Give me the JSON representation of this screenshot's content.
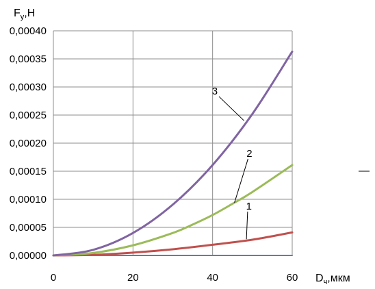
{
  "chart_data": {
    "type": "line",
    "ylabel_main": "F",
    "ylabel_sub": "y",
    "ylabel_unit": ",Н",
    "xlabel_main": "D",
    "xlabel_sub": "ч",
    "xlabel_unit": ",мкм",
    "xlim": [
      0,
      60
    ],
    "ylim": [
      0,
      0.0004
    ],
    "x_ticks": [
      "0",
      "20",
      "40",
      "60"
    ],
    "y_ticks": [
      "0,00000",
      "0,00005",
      "0,00010",
      "0,00015",
      "0,00020",
      "0,00025",
      "0,00030",
      "0,00035",
      "0,00040"
    ],
    "grid": true,
    "series": [
      {
        "name": "",
        "color": "#4f81bd",
        "x": [
          0,
          60
        ],
        "y": [
          0,
          0
        ]
      },
      {
        "name": "1",
        "color": "#c0504d",
        "x": [
          0,
          10,
          20,
          30,
          40,
          50,
          60
        ],
        "y": [
          0,
          1e-06,
          5e-06,
          1.1e-05,
          1.9e-05,
          2.8e-05,
          4.1e-05
        ]
      },
      {
        "name": "2",
        "color": "#9bbb59",
        "x": [
          0,
          10,
          20,
          30,
          35,
          40,
          45,
          50,
          60
        ],
        "y": [
          0,
          4.5e-06,
          1.8e-05,
          4e-05,
          5.5e-05,
          7.2e-05,
          9.2e-05,
          0.000113,
          0.000161
        ]
      },
      {
        "name": "3",
        "color": "#8064a2",
        "x": [
          0,
          10,
          20,
          30,
          40,
          50,
          60
        ],
        "y": [
          0,
          1e-05,
          4e-05,
          9.05e-05,
          0.000161,
          0.000252,
          0.000363
        ]
      }
    ],
    "annotations": [
      {
        "text": "1",
        "label_x": 48.8,
        "label_y": 7.8e-05,
        "point_x": 48.5,
        "point_y": 2.9e-05
      },
      {
        "text": "2",
        "label_x": 48.9,
        "label_y": 0.000172,
        "point_x": 45.5,
        "point_y": 9.4e-05
      },
      {
        "text": "3",
        "label_x": 41.6,
        "label_y": 0.000283,
        "point_x": 47.9,
        "point_y": 0.00024
      }
    ]
  }
}
